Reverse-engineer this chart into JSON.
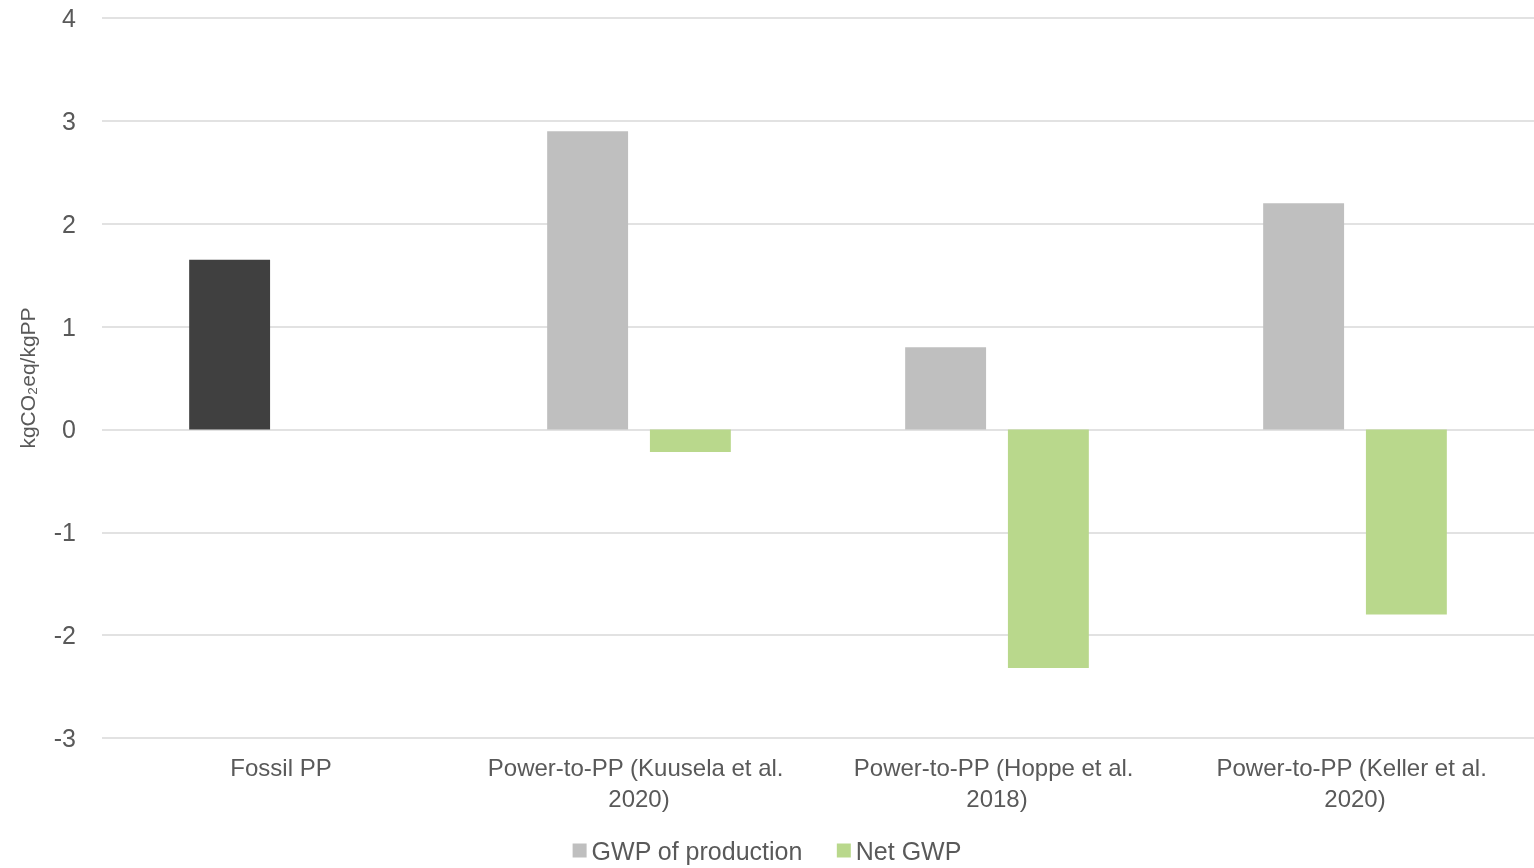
{
  "chart_data": {
    "type": "bar",
    "ylabel": "kgCO₂eq/kgPP",
    "categories": [
      "Fossil PP",
      "Power-to-PP (Kuusela et al. 2020)",
      "Power-to-PP (Hoppe et al. 2018)",
      "Power-to-PP (Keller et al. 2020)"
    ],
    "series": [
      {
        "name": "GWP of production",
        "color": "#bfbfbf",
        "colors": [
          "#404040",
          "#bfbfbf",
          "#bfbfbf",
          "#bfbfbf"
        ],
        "values": [
          1.65,
          2.9,
          0.8,
          2.2
        ]
      },
      {
        "name": "Net GWP",
        "color": "#b9d88c",
        "values": [
          null,
          -0.22,
          -2.32,
          -1.8
        ]
      }
    ],
    "ylim": [
      -3,
      4
    ],
    "yticks": [
      -3,
      -2,
      -1,
      0,
      1,
      2,
      3,
      4
    ],
    "grid": "y",
    "legend": "bottom"
  }
}
